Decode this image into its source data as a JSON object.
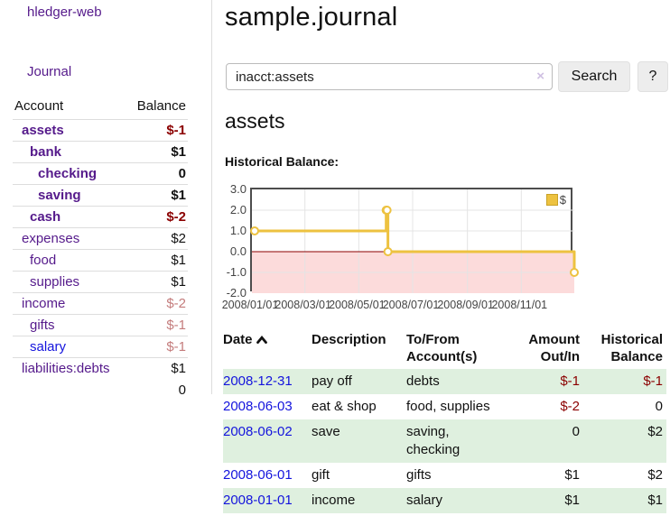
{
  "colors": {
    "link_purple": "#551a8b",
    "link_blue": "#1414dd",
    "negative_strong": "#8b0000",
    "negative_soft": "#c47c7c",
    "row_stripe_green": "#dff0df",
    "chart_line_gold": "#edc240",
    "chart_negative_region": "#fcdbdb",
    "chart_zero_line": "#8b0000",
    "border_gray": "#dddddd"
  },
  "sidebar": {
    "app_title": "hledger-web",
    "journal_link": "Journal",
    "accounts": {
      "header_account": "Account",
      "header_balance": "Balance",
      "rows": [
        {
          "name": "assets",
          "indent": 0,
          "bold": true,
          "balance": "$-1",
          "negative": "strong",
          "link_blue": false
        },
        {
          "name": "bank",
          "indent": 1,
          "bold": true,
          "balance": "$1",
          "negative": null,
          "link_blue": false
        },
        {
          "name": "checking",
          "indent": 2,
          "bold": true,
          "balance": "0",
          "negative": null,
          "link_blue": false
        },
        {
          "name": "saving",
          "indent": 2,
          "bold": true,
          "balance": "$1",
          "negative": null,
          "link_blue": false
        },
        {
          "name": "cash",
          "indent": 1,
          "bold": true,
          "balance": "$-2",
          "negative": "strong",
          "link_blue": false
        },
        {
          "name": "expenses",
          "indent": 0,
          "bold": false,
          "balance": "$2",
          "negative": null,
          "link_blue": false
        },
        {
          "name": "food",
          "indent": 1,
          "bold": false,
          "balance": "$1",
          "negative": null,
          "link_blue": false
        },
        {
          "name": "supplies",
          "indent": 1,
          "bold": false,
          "balance": "$1",
          "negative": null,
          "link_blue": false
        },
        {
          "name": "income",
          "indent": 0,
          "bold": false,
          "balance": "$-2",
          "negative": "soft",
          "link_blue": false
        },
        {
          "name": "gifts",
          "indent": 1,
          "bold": false,
          "balance": "$-1",
          "negative": "soft",
          "link_blue": false
        },
        {
          "name": "salary",
          "indent": 1,
          "bold": false,
          "balance": "$-1",
          "negative": "soft",
          "link_blue": true
        },
        {
          "name": "liabilities:debts",
          "indent": 0,
          "bold": false,
          "balance": "$1",
          "negative": null,
          "link_blue": false
        }
      ],
      "total": "0"
    }
  },
  "main": {
    "title": "sample.journal",
    "search": {
      "value": "inacct:assets",
      "clear_icon": "×",
      "search_button": "Search",
      "help_button": "?"
    },
    "account_heading": "assets",
    "chart_title": "Historical Balance:",
    "register": {
      "headers": {
        "date": "Date",
        "sort_icon": "chevron-up",
        "description": "Description",
        "accounts": "To/From Account(s)",
        "amount": "Amount Out/In",
        "balance": "Historical Balance"
      },
      "rows": [
        {
          "date": "2008-12-31",
          "description": "pay off",
          "accounts": "debts",
          "amount": "$-1",
          "amount_negative": true,
          "balance": "$-1",
          "balance_negative": true,
          "stripe": true
        },
        {
          "date": "2008-06-03",
          "description": "eat & shop",
          "accounts": "food, supplies",
          "amount": "$-2",
          "amount_negative": true,
          "balance": "0",
          "balance_negative": false,
          "stripe": false
        },
        {
          "date": "2008-06-02",
          "description": "save",
          "accounts": "saving, checking",
          "amount": "0",
          "amount_negative": false,
          "balance": "$2",
          "balance_negative": false,
          "stripe": true
        },
        {
          "date": "2008-06-01",
          "description": "gift",
          "accounts": "gifts",
          "amount": "$1",
          "amount_negative": false,
          "balance": "$2",
          "balance_negative": false,
          "stripe": false
        },
        {
          "date": "2008-01-01",
          "description": "income",
          "accounts": "salary",
          "amount": "$1",
          "amount_negative": false,
          "balance": "$1",
          "balance_negative": false,
          "stripe": true
        }
      ]
    }
  },
  "chart_data": {
    "type": "line",
    "step": true,
    "title": "Historical Balance:",
    "legend": [
      {
        "label": "$",
        "color": "#edc240"
      }
    ],
    "legend_position": "top-right",
    "x_domain": [
      "2008-01-01",
      "2008-12-31"
    ],
    "ylim": [
      -2,
      3
    ],
    "y_ticks": [
      "3.0",
      "2.0",
      "1.0",
      "0.0",
      "-1.0",
      "-2.0"
    ],
    "x_ticks": [
      "2008/01/01",
      "2008/03/01",
      "2008/05/01",
      "2008/07/01",
      "2008/09/01",
      "2008/11/01"
    ],
    "x_tick_dates": [
      "2008-01-01",
      "2008-03-01",
      "2008-05-01",
      "2008-07-01",
      "2008-09-01",
      "2008-11-01"
    ],
    "series": [
      {
        "name": "$",
        "points": [
          [
            "2008-01-01",
            1
          ],
          [
            "2008-06-01",
            2
          ],
          [
            "2008-06-02",
            2
          ],
          [
            "2008-06-03",
            0
          ],
          [
            "2008-12-31",
            -1
          ]
        ]
      }
    ],
    "grid": true,
    "negative_region_shaded": true
  }
}
